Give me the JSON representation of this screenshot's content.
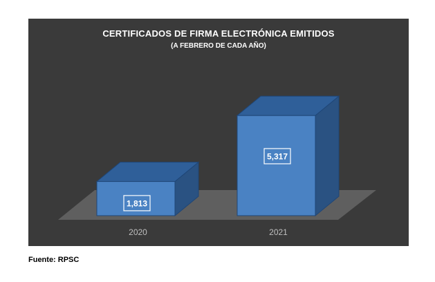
{
  "chart_data": {
    "type": "bar",
    "title": "CERTIFICADOS DE FIRMA ELECTRÓNICA EMITIDOS",
    "subtitle": "(A FEBRERO DE CADA AÑO)",
    "categories": [
      "2020",
      "2021"
    ],
    "values": [
      1813,
      5317
    ],
    "data_labels": [
      "1,813",
      "5,317"
    ],
    "ylim": [
      0,
      5800
    ],
    "grid": false,
    "legend": "none",
    "style": "3d-column",
    "colors": {
      "bar_front": "#4a82c3",
      "bar_top": "#2f5f99",
      "bar_side": "#2a5282",
      "bar_edge": "#1f4677",
      "floor": "#5f5f5f",
      "background": "#3a3a3a",
      "label_box": "#4a82c3",
      "label_border": "#ffffff",
      "text": "#ffffff"
    }
  },
  "footer": {
    "source": "Fuente: RPSC"
  }
}
